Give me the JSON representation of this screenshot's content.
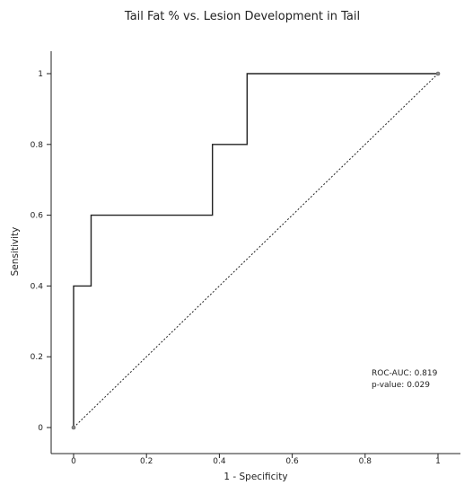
{
  "chart_data": {
    "type": "line",
    "title": "Tail Fat % vs. Lesion Development in Tail",
    "xlabel": "1 - Specificity",
    "ylabel": "Sensitivity",
    "xlim": [
      0,
      1
    ],
    "ylim": [
      0,
      1
    ],
    "x_ticks": [
      {
        "value": 0,
        "label": "0"
      },
      {
        "value": 0.2,
        "label": "0.2"
      },
      {
        "value": 0.4,
        "label": "0.4"
      },
      {
        "value": 0.6,
        "label": "0.6"
      },
      {
        "value": 0.8,
        "label": "0.8"
      },
      {
        "value": 1,
        "label": "1"
      }
    ],
    "y_ticks": [
      {
        "value": 0,
        "label": "0"
      },
      {
        "value": 0.2,
        "label": "0.2"
      },
      {
        "value": 0.4,
        "label": "0.4"
      },
      {
        "value": 0.6,
        "label": "0.6"
      },
      {
        "value": 0.8,
        "label": "0.8"
      },
      {
        "value": 1,
        "label": "1"
      }
    ],
    "grid": false,
    "series": [
      {
        "style": "step",
        "color": "#222222",
        "x": [
          0,
          0,
          0.048,
          0.048,
          0.381,
          0.381,
          0.476,
          0.476,
          1
        ],
        "y": [
          0,
          0.4,
          0.4,
          0.6,
          0.6,
          0.8,
          0.8,
          1,
          1
        ]
      },
      {
        "style": "dotted-reference",
        "color": "#222222",
        "x": [
          0,
          1
        ],
        "y": [
          0,
          1
        ]
      }
    ],
    "endpoint_markers": [
      {
        "x": 0,
        "y": 0
      },
      {
        "x": 1,
        "y": 1
      }
    ],
    "annotations": {
      "auc": "ROC-AUC: 0.819",
      "pvalue": "p-value: 0.029"
    }
  }
}
